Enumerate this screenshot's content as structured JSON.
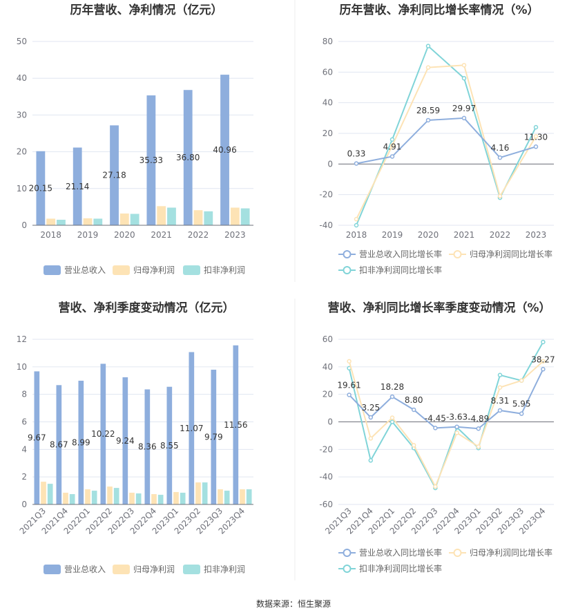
{
  "colors": {
    "revenue": "#8eaedd",
    "parent_net": "#fde3b5",
    "deducted_net": "#a4e0e0",
    "revenue_line": "#8eaedd",
    "parent_line": "#fde3b5",
    "deducted_line": "#80d4d8",
    "grid": "#e0e6f1",
    "axis": "#6e7079"
  },
  "legend": {
    "bar_items": [
      "营业总收入",
      "归母净利润",
      "扣非净利润"
    ],
    "line_items": [
      "营业总收入同比增长率",
      "归母净利润同比增长率",
      "扣非净利润同比增长率"
    ]
  },
  "source_text": "数据来源：恒生聚源",
  "chart_data": [
    {
      "id": "annual-bars",
      "type": "bar",
      "title": "历年营收、净利情况（亿元）",
      "categories": [
        "2018",
        "2019",
        "2020",
        "2021",
        "2022",
        "2023"
      ],
      "ylim": [
        0,
        50
      ],
      "yticks": [
        0,
        10,
        20,
        30,
        40,
        50
      ],
      "series": [
        {
          "name": "营业总收入",
          "values": [
            20.15,
            21.14,
            27.18,
            35.33,
            36.8,
            40.96
          ],
          "labels": [
            "20.15",
            "21.14",
            "27.18",
            "35.33",
            "36.80",
            "40.96"
          ]
        },
        {
          "name": "归母净利润",
          "values": [
            1.8,
            1.9,
            3.2,
            5.2,
            4.1,
            4.8
          ]
        },
        {
          "name": "扣非净利润",
          "values": [
            1.5,
            1.8,
            3.1,
            4.8,
            3.8,
            4.6
          ]
        }
      ],
      "legend_position": "bottom"
    },
    {
      "id": "annual-growth",
      "type": "line",
      "title": "历年营收、净利同比增长率情况（%）",
      "categories": [
        "2018",
        "2019",
        "2020",
        "2021",
        "2022",
        "2023"
      ],
      "ylim": [
        -40,
        80
      ],
      "yticks": [
        -40,
        -20,
        0,
        20,
        40,
        60,
        80
      ],
      "series": [
        {
          "name": "营业总收入同比增长率",
          "values": [
            0.33,
            4.91,
            28.59,
            29.97,
            4.16,
            11.3
          ],
          "labels": [
            "0.33",
            "4.91",
            "28.59",
            "29.97",
            "4.16",
            "11.30"
          ]
        },
        {
          "name": "归母净利润同比增长率",
          "values": [
            -36,
            12,
            63,
            64.5,
            -21,
            18
          ]
        },
        {
          "name": "扣非净利润同比增长率",
          "values": [
            -40,
            16,
            77,
            56,
            -22,
            24
          ]
        }
      ],
      "legend_position": "bottom"
    },
    {
      "id": "quarterly-bars",
      "type": "bar",
      "title": "营收、净利季度变动情况（亿元）",
      "categories": [
        "2021Q3",
        "2021Q4",
        "2022Q1",
        "2022Q2",
        "2022Q3",
        "2022Q4",
        "2023Q1",
        "2023Q2",
        "2023Q3",
        "2023Q4"
      ],
      "ylim": [
        0,
        12
      ],
      "yticks": [
        0,
        2,
        4,
        6,
        8,
        10,
        12
      ],
      "series": [
        {
          "name": "营业总收入",
          "values": [
            9.67,
            8.67,
            8.99,
            10.22,
            9.24,
            8.36,
            8.55,
            11.07,
            9.79,
            11.56
          ],
          "labels": [
            "9.67",
            "8.67",
            "8.99",
            "10.22",
            "9.24",
            "8.36",
            "8.55",
            "11.07",
            "9.79",
            "11.56"
          ]
        },
        {
          "name": "归母净利润",
          "values": [
            1.65,
            0.85,
            1.1,
            1.3,
            0.85,
            0.75,
            0.9,
            1.6,
            1.1,
            1.1
          ]
        },
        {
          "name": "扣非净利润",
          "values": [
            1.5,
            0.75,
            1.0,
            1.2,
            0.8,
            0.7,
            0.85,
            1.6,
            1.0,
            1.1
          ]
        }
      ],
      "legend_position": "bottom"
    },
    {
      "id": "quarterly-growth",
      "type": "line",
      "title": "营收、净利同比增长率季度变动情况（%）",
      "categories": [
        "2021Q3",
        "2021Q4",
        "2022Q1",
        "2022Q2",
        "2022Q3",
        "2022Q4",
        "2023Q1",
        "2023Q2",
        "2023Q3",
        "2023Q4"
      ],
      "ylim": [
        -60,
        60
      ],
      "yticks": [
        -60,
        -40,
        -20,
        0,
        20,
        40,
        60
      ],
      "series": [
        {
          "name": "营业总收入同比增长率",
          "values": [
            19.61,
            3.25,
            18.28,
            8.8,
            -4.45,
            -3.63,
            -4.89,
            8.31,
            5.95,
            38.27
          ],
          "labels": [
            "19.61",
            "3.25",
            "18.28",
            "8.80",
            "-4.45",
            "-3.63",
            "-4.89",
            "8.31",
            "5.95",
            "38.27"
          ]
        },
        {
          "name": "归母净利润同比增长率",
          "values": [
            44,
            -12,
            3,
            -17,
            -47,
            -8,
            -18,
            25,
            30,
            44
          ]
        },
        {
          "name": "扣非净利润同比增长率",
          "values": [
            39,
            -28,
            0,
            -19,
            -48,
            -4,
            -19,
            34,
            30,
            58
          ]
        }
      ],
      "legend_position": "bottom"
    }
  ]
}
